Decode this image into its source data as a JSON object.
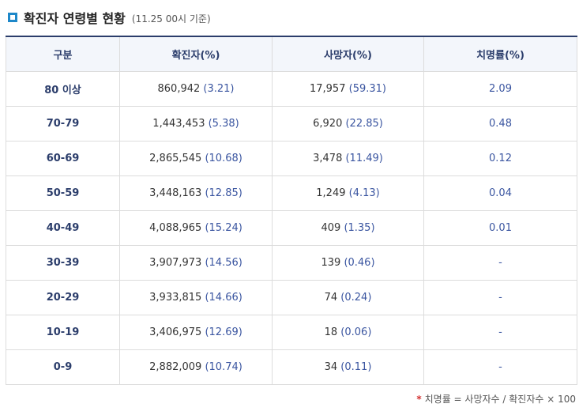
{
  "title": "확진자 연령별 현황",
  "subtitle": "(11.25 00시 기준)",
  "headers": [
    "구분",
    "확진자(%)",
    "사망자(%)",
    "치명률(%)"
  ],
  "rows": [
    {
      "group": "80 이상",
      "cases": "860,942",
      "cases_pct": "(3.21)",
      "deaths": "17,957",
      "deaths_pct": "(59.31)",
      "rate": "2.09"
    },
    {
      "group": "70-79",
      "cases": "1,443,453",
      "cases_pct": "(5.38)",
      "deaths": "6,920",
      "deaths_pct": "(22.85)",
      "rate": "0.48"
    },
    {
      "group": "60-69",
      "cases": "2,865,545",
      "cases_pct": "(10.68)",
      "deaths": "3,478",
      "deaths_pct": "(11.49)",
      "rate": "0.12"
    },
    {
      "group": "50-59",
      "cases": "3,448,163",
      "cases_pct": "(12.85)",
      "deaths": "1,249",
      "deaths_pct": "(4.13)",
      "rate": "0.04"
    },
    {
      "group": "40-49",
      "cases": "4,088,965",
      "cases_pct": "(15.24)",
      "deaths": "409",
      "deaths_pct": "(1.35)",
      "rate": "0.01"
    },
    {
      "group": "30-39",
      "cases": "3,907,973",
      "cases_pct": "(14.56)",
      "deaths": "139",
      "deaths_pct": "(0.46)",
      "rate": "-"
    },
    {
      "group": "20-29",
      "cases": "3,933,815",
      "cases_pct": "(14.66)",
      "deaths": "74",
      "deaths_pct": "(0.24)",
      "rate": "-"
    },
    {
      "group": "10-19",
      "cases": "3,406,975",
      "cases_pct": "(12.69)",
      "deaths": "18",
      "deaths_pct": "(0.06)",
      "rate": "-"
    },
    {
      "group": "0-9",
      "cases": "2,882,009",
      "cases_pct": "(10.74)",
      "deaths": "34",
      "deaths_pct": "(0.11)",
      "rate": "-"
    }
  ],
  "footnote": {
    "marker": "*",
    "text": "치명률 = 사망자수 / 확진자수 × 100"
  },
  "colors": {
    "accent": "#1e88c9",
    "header_text": "#2b3d6b",
    "percent_text": "#3a55a0",
    "footnote_marker": "#d32f2f"
  }
}
